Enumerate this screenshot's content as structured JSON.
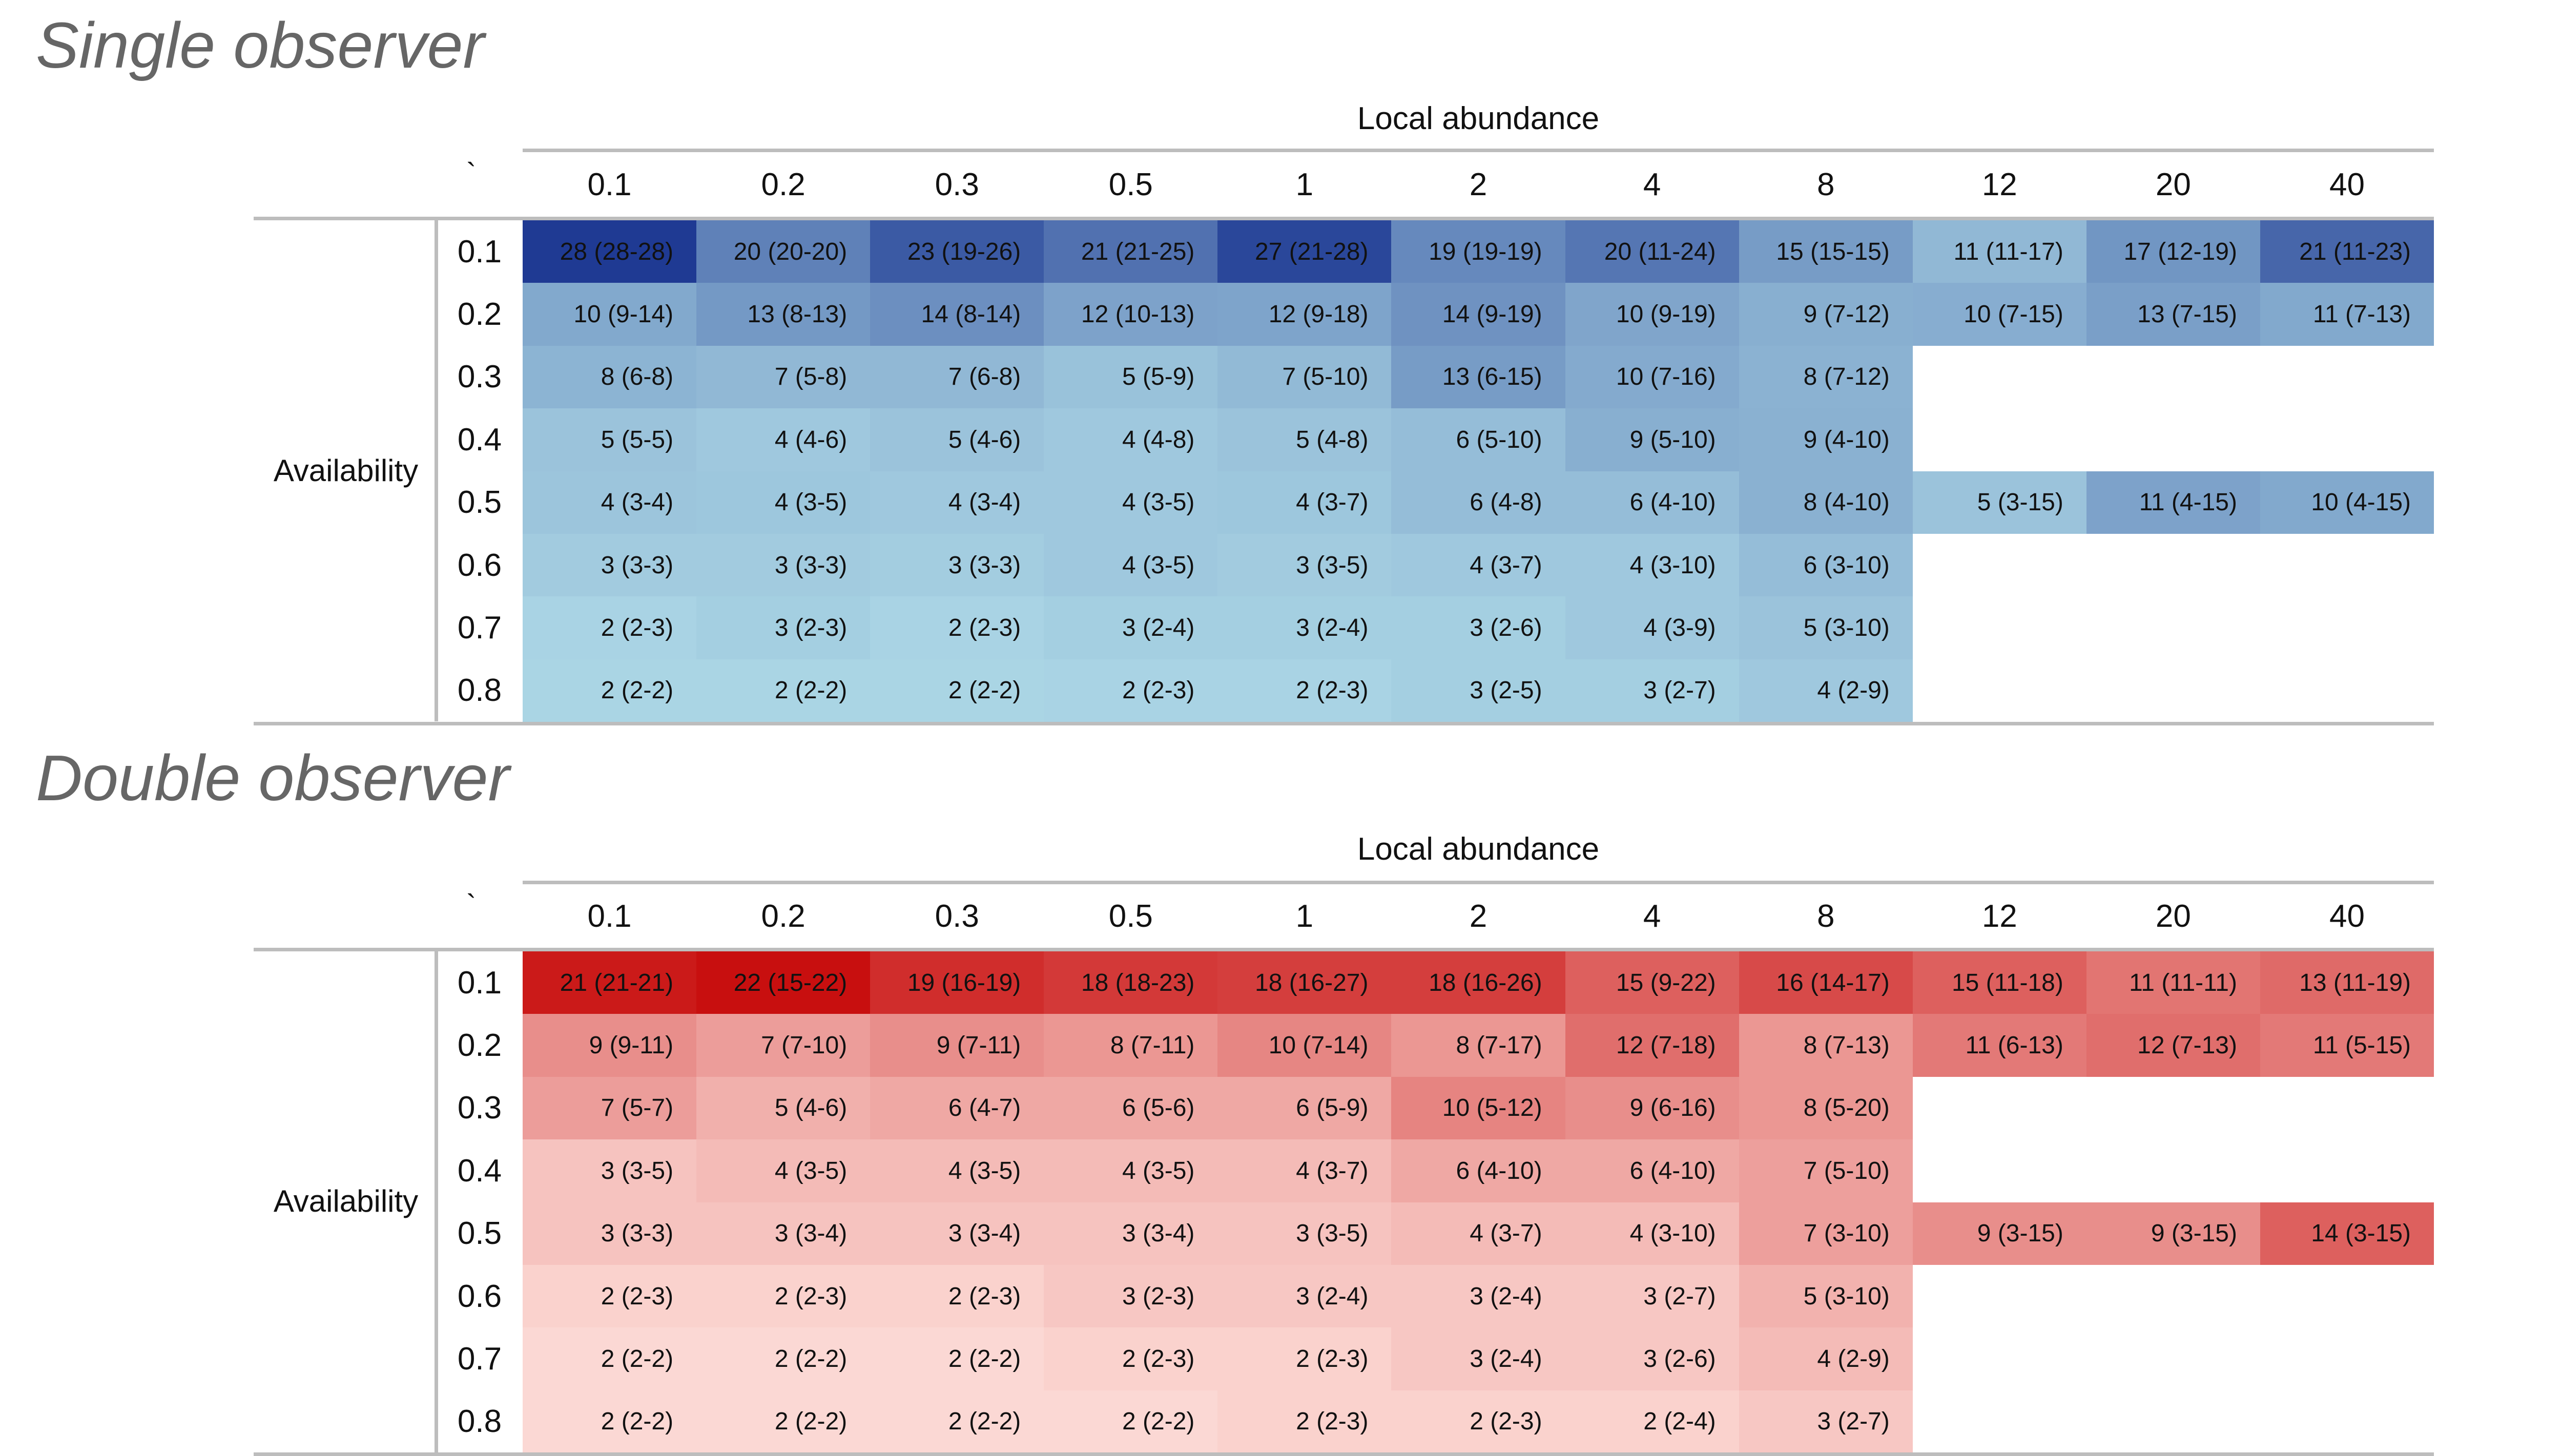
{
  "chart_data": [
    {
      "type": "heatmap",
      "title": "Single observer",
      "xlabel": "Local abundance",
      "ylabel": "Availability",
      "corner_mark": "`",
      "color_scale": [
        "#add8e6",
        "#1f3a93"
      ],
      "categories": [
        "0.1",
        "0.2",
        "0.3",
        "0.5",
        "1",
        "2",
        "4",
        "8",
        "12",
        "20",
        "40"
      ],
      "rows": [
        "0.1",
        "0.2",
        "0.3",
        "0.4",
        "0.5",
        "0.6",
        "0.7",
        "0.8"
      ],
      "cells": [
        [
          "28 (28-28)",
          "20 (20-20)",
          "23 (19-26)",
          "21 (21-25)",
          "27 (21-28)",
          "19 (19-19)",
          "20 (11-24)",
          "15 (15-15)",
          "11 (11-17)",
          "17 (12-19)",
          "21 (11-23)"
        ],
        [
          "10 (9-14)",
          "13 (8-13)",
          "14 (8-14)",
          "12 (10-13)",
          "12 (9-18)",
          "14 (9-19)",
          "10 (9-19)",
          "9 (7-12)",
          "10 (7-15)",
          "13 (7-15)",
          "11 (7-13)"
        ],
        [
          "8 (6-8)",
          "7 (5-8)",
          "7 (6-8)",
          "5 (5-9)",
          "7 (5-10)",
          "13 (6-15)",
          "10 (7-16)",
          "8 (7-12)",
          "",
          "",
          ""
        ],
        [
          "5 (5-5)",
          "4 (4-6)",
          "5 (4-6)",
          "4 (4-8)",
          "5 (4-8)",
          "6 (5-10)",
          "9 (5-10)",
          "9 (4-10)",
          "",
          "",
          ""
        ],
        [
          "4 (3-4)",
          "4 (3-5)",
          "4 (3-4)",
          "4 (3-5)",
          "4 (3-7)",
          "6 (4-8)",
          "6 (4-10)",
          "8 (4-10)",
          "5 (3-15)",
          "11 (4-15)",
          "10 (4-15)"
        ],
        [
          "3 (3-3)",
          "3 (3-3)",
          "3 (3-3)",
          "4 (3-5)",
          "3 (3-5)",
          "4 (3-7)",
          "4 (3-10)",
          "6 (3-10)",
          "",
          "",
          ""
        ],
        [
          "2 (2-3)",
          "3 (2-3)",
          "2 (2-3)",
          "3 (2-4)",
          "3 (2-4)",
          "3 (2-6)",
          "4 (3-9)",
          "5 (3-10)",
          "",
          "",
          ""
        ],
        [
          "2 (2-2)",
          "2 (2-2)",
          "2 (2-2)",
          "2 (2-3)",
          "2 (2-3)",
          "3 (2-5)",
          "3 (2-7)",
          "4 (2-9)",
          "",
          "",
          ""
        ]
      ],
      "shade": [
        [
          1.0,
          0.55,
          0.8,
          0.65,
          0.92,
          0.5,
          0.62,
          0.38,
          0.2,
          0.42,
          0.72
        ],
        [
          0.3,
          0.4,
          0.46,
          0.34,
          0.33,
          0.44,
          0.32,
          0.26,
          0.27,
          0.36,
          0.3
        ],
        [
          0.23,
          0.2,
          0.2,
          0.14,
          0.19,
          0.38,
          0.29,
          0.24,
          null,
          null,
          null
        ],
        [
          0.13,
          0.1,
          0.13,
          0.1,
          0.13,
          0.17,
          0.26,
          0.25,
          null,
          null,
          null
        ],
        [
          0.12,
          0.11,
          0.1,
          0.1,
          0.11,
          0.17,
          0.17,
          0.25,
          0.13,
          0.34,
          0.3
        ],
        [
          0.08,
          0.08,
          0.07,
          0.1,
          0.08,
          0.1,
          0.1,
          0.17,
          null,
          null,
          null
        ],
        [
          0.03,
          0.06,
          0.03,
          0.06,
          0.06,
          0.06,
          0.1,
          0.13,
          null,
          null,
          null
        ],
        [
          0.02,
          0.02,
          0.02,
          0.03,
          0.03,
          0.06,
          0.06,
          0.1,
          null,
          null,
          null
        ]
      ]
    },
    {
      "type": "heatmap",
      "title": "Double observer",
      "xlabel": "Local abundance",
      "ylabel": "Availability",
      "corner_mark": "`",
      "color_scale": [
        "#fee3de",
        "#c80f0f"
      ],
      "categories": [
        "0.1",
        "0.2",
        "0.3",
        "0.5",
        "1",
        "2",
        "4",
        "8",
        "12",
        "20",
        "40"
      ],
      "rows": [
        "0.1",
        "0.2",
        "0.3",
        "0.4",
        "0.5",
        "0.6",
        "0.7",
        "0.8"
      ],
      "cells": [
        [
          "21 (21-21)",
          "22 (15-22)",
          "19 (16-19)",
          "18 (18-23)",
          "18 (16-27)",
          "18 (16-26)",
          "15 (9-22)",
          "16 (14-17)",
          "15 (11-18)",
          "11 (11-11)",
          "13 (11-19)"
        ],
        [
          "9 (9-11)",
          "7 (7-10)",
          "9 (7-11)",
          "8 (7-11)",
          "10 (7-14)",
          "8 (7-17)",
          "12 (7-18)",
          "8 (7-13)",
          "11 (6-13)",
          "12 (7-13)",
          "11 (5-15)"
        ],
        [
          "7 (5-7)",
          "5 (4-6)",
          "6 (4-7)",
          "6 (5-6)",
          "6 (5-9)",
          "10 (5-12)",
          "9 (6-16)",
          "8 (5-20)",
          "",
          "",
          ""
        ],
        [
          "3 (3-5)",
          "4 (3-5)",
          "4 (3-5)",
          "4 (3-5)",
          "4 (3-7)",
          "6 (4-10)",
          "6 (4-10)",
          "7 (5-10)",
          "",
          "",
          ""
        ],
        [
          "3 (3-3)",
          "3 (3-4)",
          "3 (3-4)",
          "3 (3-4)",
          "3 (3-5)",
          "4 (3-7)",
          "4 (3-10)",
          "7 (3-10)",
          "9 (3-15)",
          "9 (3-15)",
          "14 (3-15)"
        ],
        [
          "2 (2-3)",
          "2 (2-3)",
          "2 (2-3)",
          "3 (2-3)",
          "3 (2-4)",
          "3 (2-4)",
          "3 (2-7)",
          "5 (3-10)",
          "",
          "",
          ""
        ],
        [
          "2 (2-2)",
          "2 (2-2)",
          "2 (2-2)",
          "2 (2-3)",
          "2 (2-3)",
          "3 (2-4)",
          "3 (2-6)",
          "4 (2-9)",
          "",
          "",
          ""
        ],
        [
          "2 (2-2)",
          "2 (2-2)",
          "2 (2-2)",
          "2 (2-2)",
          "2 (2-3)",
          "2 (2-3)",
          "2 (2-4)",
          "3 (2-7)",
          "",
          "",
          ""
        ]
      ],
      "shade": [
        [
          0.95,
          1.0,
          0.86,
          0.8,
          0.78,
          0.78,
          0.62,
          0.72,
          0.62,
          0.52,
          0.57
        ],
        [
          0.4,
          0.33,
          0.4,
          0.36,
          0.44,
          0.36,
          0.55,
          0.36,
          0.5,
          0.55,
          0.5
        ],
        [
          0.33,
          0.24,
          0.28,
          0.28,
          0.28,
          0.45,
          0.4,
          0.36,
          null,
          null,
          null
        ],
        [
          0.15,
          0.19,
          0.19,
          0.19,
          0.19,
          0.28,
          0.28,
          0.32,
          null,
          null,
          null
        ],
        [
          0.15,
          0.15,
          0.15,
          0.15,
          0.15,
          0.19,
          0.19,
          0.32,
          0.4,
          0.4,
          0.62
        ],
        [
          0.08,
          0.08,
          0.08,
          0.13,
          0.13,
          0.13,
          0.13,
          0.23,
          null,
          null,
          null
        ],
        [
          0.05,
          0.05,
          0.05,
          0.08,
          0.08,
          0.13,
          0.13,
          0.19,
          null,
          null,
          null
        ],
        [
          0.05,
          0.05,
          0.05,
          0.05,
          0.08,
          0.08,
          0.08,
          0.13,
          null,
          null,
          null
        ]
      ]
    }
  ]
}
